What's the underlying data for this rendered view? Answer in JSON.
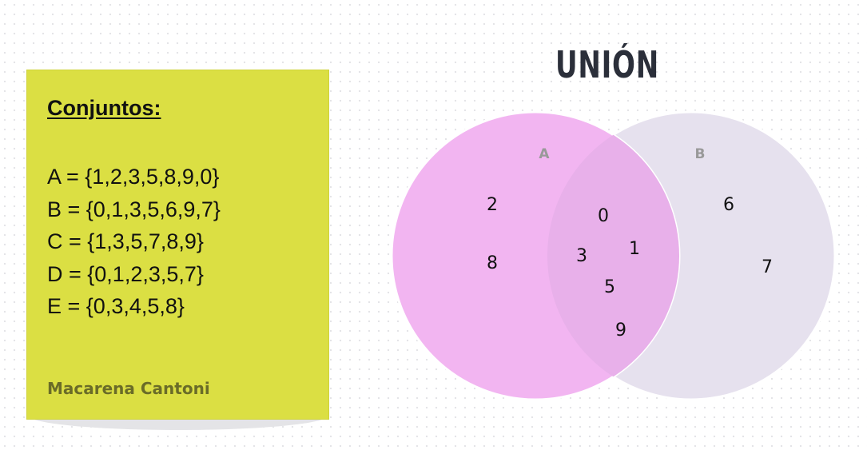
{
  "note": {
    "title": "Conjuntos:",
    "sets": [
      "A = {1,2,3,5,8,9,0}",
      "B = {0,1,3,5,6,9,7}",
      "C = {1,3,5,7,8,9}",
      "D = {0,1,2,3,5,7}",
      "E = {0,3,4,5,8}"
    ],
    "author": "Macarena Cantoni"
  },
  "diagram": {
    "title": "UNIÓN",
    "set_a": {
      "label": "A",
      "color": "#f2b5f1",
      "only_elements": [
        "2",
        "8"
      ]
    },
    "set_b": {
      "label": "B",
      "color": "#e6e1ee",
      "only_elements": [
        "6",
        "7"
      ]
    },
    "intersection": {
      "color": "#e8b0ea",
      "elements": [
        "0",
        "3",
        "1",
        "5",
        "9"
      ]
    }
  }
}
